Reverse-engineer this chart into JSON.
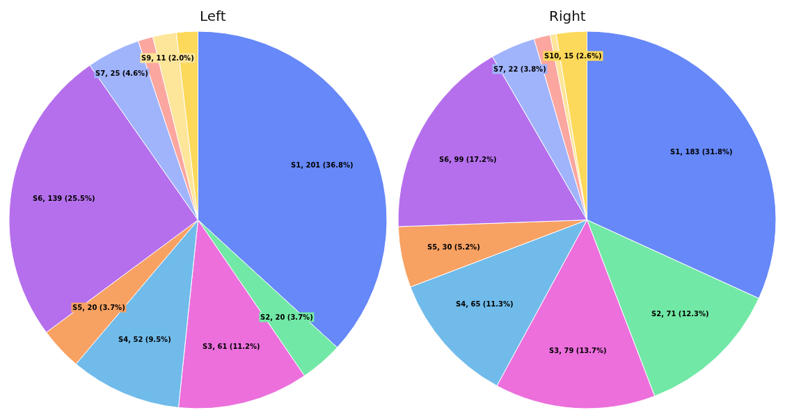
{
  "chart_data": [
    {
      "type": "pie",
      "title": "Left",
      "categories": [
        "S1",
        "S2",
        "S3",
        "S4",
        "S5",
        "S6",
        "S7",
        null,
        "S9",
        null
      ],
      "values": [
        201,
        20,
        61,
        52,
        20,
        139,
        25,
        7,
        11,
        10
      ],
      "colors": [
        "#6688f8",
        "#72e8a6",
        "#ec6fdc",
        "#70bbea",
        "#f7a163",
        "#b56fec",
        "#a0b4fc",
        "#fca6a0",
        "#fde59a",
        "#fcd95a"
      ],
      "value_labels": [
        "201 (36.8%)",
        "20 (3.7%)",
        "61 (11.2%)",
        "52 (9.5%)",
        "20 (3.7%)",
        "139 (25.5%)",
        "25 (4.6%)",
        null,
        "11 (2.0%)",
        null
      ]
    },
    {
      "type": "pie",
      "title": "Right",
      "categories": [
        "S1",
        "S2",
        "S3",
        "S4",
        "S5",
        "S6",
        "S7",
        null,
        null,
        "S10"
      ],
      "values": [
        183,
        71,
        79,
        65,
        30,
        99,
        22,
        8,
        3,
        15
      ],
      "colors": [
        "#6688f8",
        "#72e8a6",
        "#ec6fdc",
        "#70bbea",
        "#f7a163",
        "#b56fec",
        "#a0b4fc",
        "#fca6a0",
        "#fde59a",
        "#fcd95a"
      ],
      "value_labels": [
        "183 (31.8%)",
        "71 (12.3%)",
        "79 (13.7%)",
        "65 (11.3%)",
        "30 (5.2%)",
        "99 (17.2%)",
        "22 (3.8%)",
        null,
        null,
        "15 (2.6%)"
      ]
    }
  ]
}
